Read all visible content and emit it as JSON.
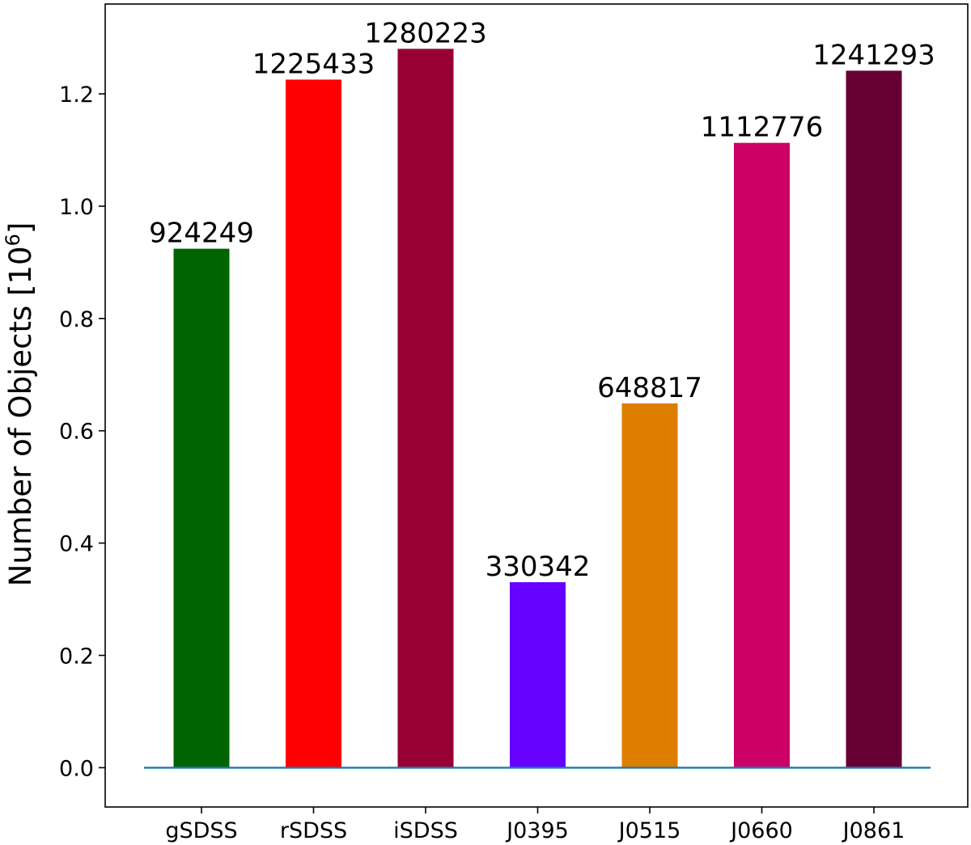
{
  "chart_data": {
    "type": "bar",
    "categories": [
      "gSDSS",
      "rSDSS",
      "iSDSS",
      "J0395",
      "J0515",
      "J0660",
      "J0861"
    ],
    "values": [
      0.924249,
      1.225433,
      1.280223,
      0.330342,
      0.648817,
      1.112776,
      1.241293
    ],
    "value_labels": [
      "924249",
      "1225433",
      "1280223",
      "330342",
      "648817",
      "1112776",
      "1241293"
    ],
    "colors": [
      "#006400",
      "#ff0000",
      "#960032",
      "#6600ff",
      "#dd7e00",
      "#cc0066",
      "#660033"
    ],
    "ylabel": "Number of Objects [10",
    "ylabel_superscript": "6",
    "ylabel_suffix": "]",
    "ylim": [
      -0.07,
      1.36
    ],
    "yticks": [
      0.0,
      0.2,
      0.4,
      0.6,
      0.8,
      1.0,
      1.2
    ],
    "ytick_labels": [
      "0.0",
      "0.2",
      "0.4",
      "0.6",
      "0.8",
      "1.0",
      "1.2"
    ],
    "baseline": 0.0,
    "baseline_color": "#1f77b4",
    "grid": false,
    "legend": "none"
  }
}
